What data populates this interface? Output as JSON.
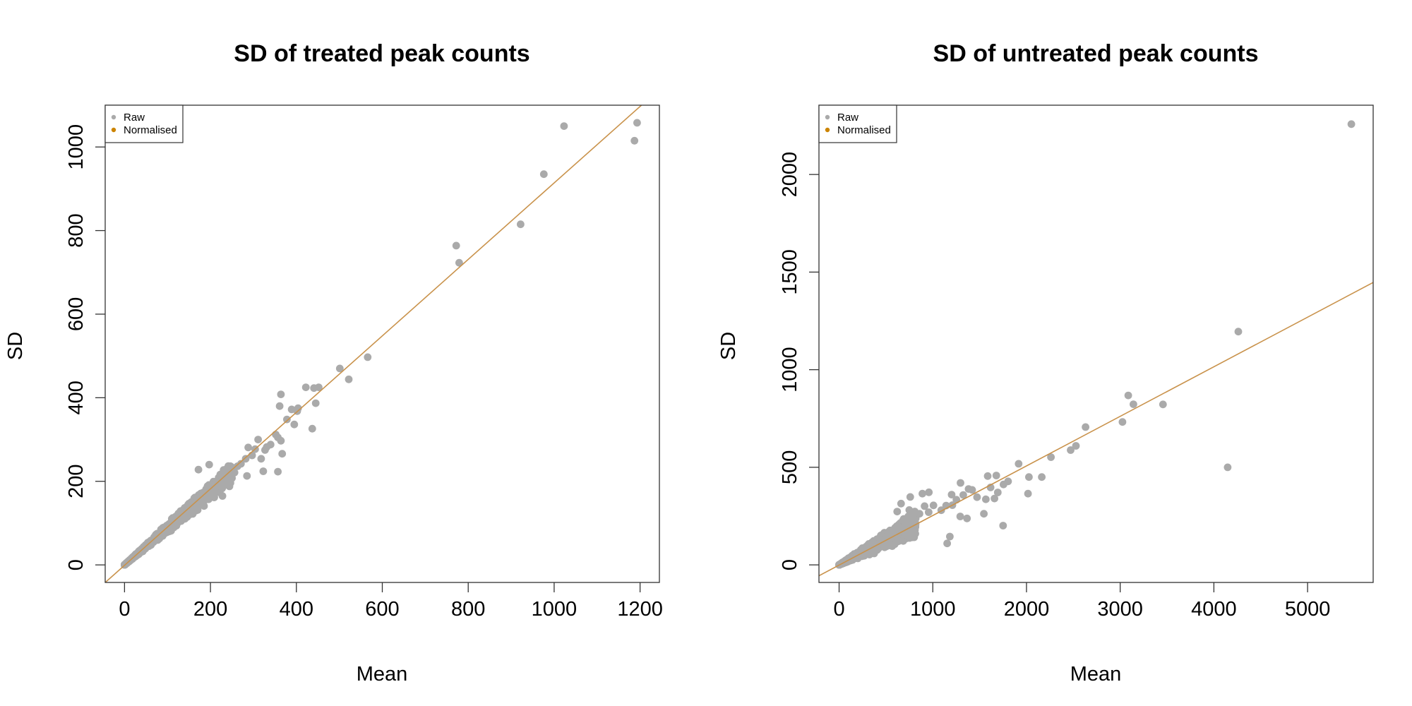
{
  "chart_data": [
    {
      "type": "scatter",
      "title": "SD of treated peak counts",
      "xlabel": "Mean",
      "ylabel": "SD",
      "xlim": [
        -45,
        1245
      ],
      "ylim": [
        -42,
        1100
      ],
      "xticks": [
        0,
        200,
        400,
        600,
        800,
        1000,
        1200
      ],
      "yticks": [
        0,
        200,
        400,
        600,
        800,
        1000
      ],
      "legend": {
        "position": "top-left",
        "entries": [
          {
            "label": "Raw",
            "color": "#aaaaaa"
          },
          {
            "label": "Normalised",
            "color": "#cc8400"
          }
        ]
      },
      "fit_line": {
        "color": "#c9924b",
        "slope": 0.915,
        "intercept": -1
      },
      "series": [
        {
          "name": "Raw",
          "color": "#aaaaaa",
          "cloud": {
            "xmax": 250,
            "count": 1200,
            "slope": 0.88,
            "spread": 0.16,
            "seed": 11
          },
          "points": [
            [
              1193,
              1058
            ],
            [
              1023,
              1050
            ],
            [
              1187,
              1015
            ],
            [
              976,
              935
            ],
            [
              922,
              815
            ],
            [
              772,
              764
            ],
            [
              779,
              723
            ],
            [
              566,
              497
            ],
            [
              501,
              470
            ],
            [
              522,
              444
            ],
            [
              452,
              425
            ],
            [
              441,
              423
            ],
            [
              422,
              425
            ],
            [
              445,
              387
            ],
            [
              437,
              326
            ],
            [
              364,
              408
            ],
            [
              361,
              380
            ],
            [
              389,
              372
            ],
            [
              404,
              375
            ],
            [
              402,
              368
            ],
            [
              395,
              336
            ],
            [
              378,
              348
            ],
            [
              352,
              312
            ],
            [
              357,
              305
            ],
            [
              364,
              297
            ],
            [
              340,
              288
            ],
            [
              331,
              282
            ],
            [
              327,
              275
            ],
            [
              311,
              300
            ],
            [
              304,
              277
            ],
            [
              318,
              254
            ],
            [
              323,
              224
            ],
            [
              357,
              223
            ],
            [
              367,
              266
            ],
            [
              288,
              281
            ],
            [
              297,
              262
            ],
            [
              282,
              254
            ],
            [
              285,
              213
            ],
            [
              271,
              242
            ],
            [
              263,
              236
            ],
            [
              256,
              221
            ],
            [
              248,
              235
            ],
            [
              239,
              231
            ],
            [
              226,
              212
            ],
            [
              197,
              240
            ],
            [
              172,
              228
            ],
            [
              205,
              167
            ],
            [
              228,
              165
            ]
          ]
        }
      ]
    },
    {
      "type": "scatter",
      "title": "SD of untreated peak counts",
      "xlabel": "Mean",
      "ylabel": "SD",
      "xlim": [
        -215,
        5700
      ],
      "ylim": [
        -90,
        2355
      ],
      "xticks": [
        0,
        1000,
        2000,
        3000,
        4000,
        5000
      ],
      "yticks": [
        0,
        500,
        1000,
        1500,
        2000
      ],
      "legend": {
        "position": "top-left",
        "entries": [
          {
            "label": "Raw",
            "color": "#aaaaaa"
          },
          {
            "label": "Normalised",
            "color": "#cc8400"
          }
        ]
      },
      "fit_line": {
        "color": "#c9924b",
        "slope": 0.254,
        "intercept": -1
      },
      "series": [
        {
          "name": "Raw",
          "color": "#aaaaaa",
          "cloud": {
            "xmax": 820,
            "count": 1300,
            "slope": 0.26,
            "spread": 0.42,
            "seed": 23
          },
          "points": [
            [
              5467,
              2258
            ],
            [
              4261,
              1195
            ],
            [
              3457,
              822
            ],
            [
              3086,
              868
            ],
            [
              3141,
              823
            ],
            [
              3024,
              732
            ],
            [
              4147,
              500
            ],
            [
              2630,
              706
            ],
            [
              2528,
              610
            ],
            [
              2471,
              588
            ],
            [
              2261,
              552
            ],
            [
              2163,
              450
            ],
            [
              2026,
              450
            ],
            [
              2016,
              365
            ],
            [
              1916,
              518
            ],
            [
              1804,
              428
            ],
            [
              1755,
              412
            ],
            [
              1750,
              201
            ],
            [
              1694,
              371
            ],
            [
              1678,
              458
            ],
            [
              1617,
              397
            ],
            [
              1658,
              340
            ],
            [
              1586,
              455
            ],
            [
              1566,
              336
            ],
            [
              1545,
              262
            ],
            [
              1472,
              347
            ],
            [
              1420,
              384
            ],
            [
              1382,
              389
            ],
            [
              1365,
              238
            ],
            [
              1325,
              358
            ],
            [
              1296,
              420
            ],
            [
              1293,
              248
            ],
            [
              1252,
              334
            ],
            [
              1201,
              360
            ],
            [
              1182,
              145
            ],
            [
              1153,
              110
            ],
            [
              1142,
              304
            ],
            [
              1209,
              306
            ],
            [
              1090,
              280
            ],
            [
              1007,
              305
            ],
            [
              958,
              372
            ],
            [
              956,
              270
            ],
            [
              889,
              365
            ],
            [
              858,
              262
            ],
            [
              912,
              301
            ],
            [
              759,
              348
            ],
            [
              749,
              281
            ],
            [
              661,
              314
            ],
            [
              620,
              273
            ]
          ]
        }
      ]
    }
  ]
}
